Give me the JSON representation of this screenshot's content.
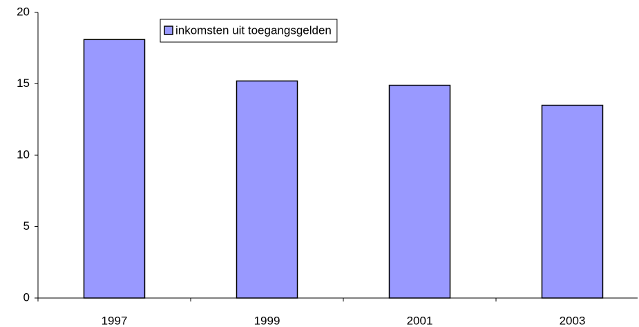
{
  "chart_data": {
    "type": "bar",
    "categories": [
      "1997",
      "1999",
      "2001",
      "2003"
    ],
    "series": [
      {
        "name": "inkomsten uit toegangsgelden",
        "color": "#9999ff",
        "values": [
          18.1,
          15.2,
          14.9,
          13.5
        ]
      }
    ],
    "ylim": [
      0,
      20
    ],
    "yticks": [
      0,
      5,
      10,
      15,
      20
    ],
    "grid": false
  }
}
